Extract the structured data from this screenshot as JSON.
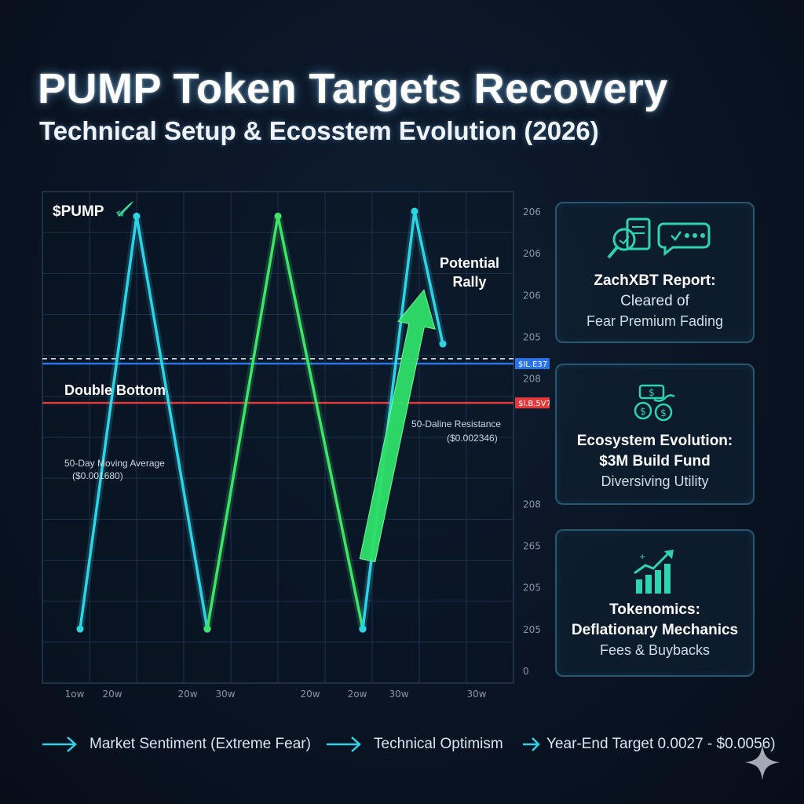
{
  "header": {
    "title": "PUMP Token Targets Recovery",
    "subtitle": "Technical Setup & Ecosstem Evolution (2026)"
  },
  "colors": {
    "cyan": "#2fd3e6",
    "green": "#3ee46a",
    "blue_line": "#2a73e6",
    "red_line": "#e23a3a",
    "bg": "#0a1424"
  },
  "chart_data": {
    "type": "line",
    "title": "$PUMP",
    "title_icon": "rocket-icon",
    "x_tick_labels": [
      "1ow",
      "20w",
      "20w",
      "30w",
      "20w",
      "2ow",
      "30w",
      "30w"
    ],
    "y_tick_labels": [
      "206",
      "206",
      "206",
      "205",
      "208",
      "",
      "",
      "208",
      "265",
      "205",
      "205",
      "0"
    ],
    "x_range": [
      0,
      100
    ],
    "y_range": [
      0,
      100
    ],
    "series": [
      {
        "name": "cyan-zigzag-left",
        "color": "cyan",
        "x": [
          8,
          20,
          35
        ],
        "y": [
          11,
          95,
          11
        ]
      },
      {
        "name": "green-zigzag",
        "color": "green",
        "x": [
          35,
          50,
          68
        ],
        "y": [
          11,
          95,
          11
        ]
      },
      {
        "name": "cyan-zigzag-right",
        "color": "cyan",
        "x": [
          68,
          79,
          85
        ],
        "y": [
          11,
          96,
          69
        ]
      }
    ],
    "annotations": {
      "double_bottom": "Double Bottom",
      "potential_rally": [
        "Potential",
        "Rally"
      ],
      "resistance_label": [
        "50-Daline Resistance",
        "($0.002346)"
      ],
      "resistance_tag": "$IL.E37",
      "moving_avg_label": [
        "50-Day Moving Average",
        "($0.001680)"
      ],
      "moving_avg_tag": "$l.B.5V7"
    },
    "levels": {
      "double_bottom_dashed": 66,
      "resistance": 65,
      "moving_average": 57
    }
  },
  "cards": [
    {
      "icon": "report-chat-icon",
      "line1": "ZachXBT Report:",
      "line2": "Cleared of",
      "line3": "Fear Premium Fading"
    },
    {
      "icon": "coins-icon",
      "line1": "Ecosystem Evolution:",
      "line2": "$3M Build Fund",
      "line3": "Diversiving Utility"
    },
    {
      "icon": "growth-chart-icon",
      "line1": "Tokenomics:",
      "line2": "Deflationary Mechanics",
      "line3": "Fees & Buybacks"
    }
  ],
  "footer": [
    "Market Sentiment (Extreme Fear)",
    "Technical Optimism",
    "Year-End Target 0.0027 - $0.0056)"
  ]
}
